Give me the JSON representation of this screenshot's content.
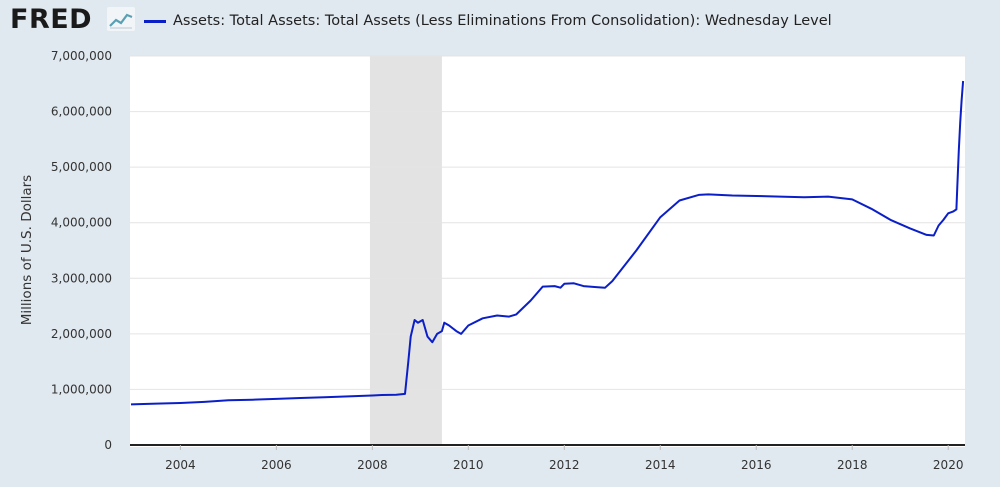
{
  "header": {
    "logo_text": "FRED",
    "logo_icon": "trend-line-icon",
    "series_color": "#0b1fc8"
  },
  "chart_data": {
    "type": "line",
    "title": "",
    "legend": {
      "placement": "top-left",
      "entries": [
        "Assets: Total Assets: Total Assets (Less Eliminations From Consolidation): Wednesday Level"
      ]
    },
    "xlabel": "",
    "ylabel": "Millions of U.S. Dollars",
    "xlim": [
      2002.95,
      2020.35
    ],
    "ylim": [
      0,
      7000000
    ],
    "x_ticks": [
      2004,
      2006,
      2008,
      2010,
      2012,
      2014,
      2016,
      2018,
      2020
    ],
    "x_tick_labels": [
      "2004",
      "2006",
      "2008",
      "2010",
      "2012",
      "2014",
      "2016",
      "2018",
      "2020"
    ],
    "y_ticks": [
      0,
      1000000,
      2000000,
      3000000,
      4000000,
      5000000,
      6000000,
      7000000
    ],
    "y_tick_labels": [
      "0",
      "1,000,000",
      "2,000,000",
      "3,000,000",
      "4,000,000",
      "5,000,000",
      "6,000,000",
      "7,000,000"
    ],
    "grid": "horizontal",
    "recession_shading": [
      [
        2007.95,
        2009.45
      ]
    ],
    "series": [
      {
        "name": "Assets: Total Assets: Total Assets (Less Eliminations From Consolidation): Wednesday Level",
        "color": "#0b1fc8",
        "points": [
          [
            2002.97,
            730000
          ],
          [
            2003.5,
            745000
          ],
          [
            2004.0,
            755000
          ],
          [
            2004.5,
            775000
          ],
          [
            2005.0,
            805000
          ],
          [
            2005.5,
            815000
          ],
          [
            2006.0,
            830000
          ],
          [
            2006.5,
            845000
          ],
          [
            2007.0,
            860000
          ],
          [
            2007.5,
            875000
          ],
          [
            2008.0,
            890000
          ],
          [
            2008.2,
            900000
          ],
          [
            2008.5,
            905000
          ],
          [
            2008.68,
            920000
          ],
          [
            2008.75,
            1500000
          ],
          [
            2008.8,
            1950000
          ],
          [
            2008.88,
            2250000
          ],
          [
            2008.95,
            2200000
          ],
          [
            2009.05,
            2250000
          ],
          [
            2009.15,
            1950000
          ],
          [
            2009.25,
            1850000
          ],
          [
            2009.35,
            2000000
          ],
          [
            2009.45,
            2050000
          ],
          [
            2009.5,
            2200000
          ],
          [
            2009.6,
            2150000
          ],
          [
            2009.75,
            2050000
          ],
          [
            2009.85,
            2000000
          ],
          [
            2010.0,
            2150000
          ],
          [
            2010.3,
            2280000
          ],
          [
            2010.6,
            2330000
          ],
          [
            2010.85,
            2310000
          ],
          [
            2011.0,
            2350000
          ],
          [
            2011.3,
            2600000
          ],
          [
            2011.55,
            2850000
          ],
          [
            2011.8,
            2860000
          ],
          [
            2011.92,
            2830000
          ],
          [
            2012.0,
            2900000
          ],
          [
            2012.2,
            2910000
          ],
          [
            2012.4,
            2860000
          ],
          [
            2012.7,
            2840000
          ],
          [
            2012.85,
            2830000
          ],
          [
            2013.0,
            2950000
          ],
          [
            2013.5,
            3500000
          ],
          [
            2014.0,
            4100000
          ],
          [
            2014.4,
            4400000
          ],
          [
            2014.8,
            4500000
          ],
          [
            2015.0,
            4510000
          ],
          [
            2015.5,
            4490000
          ],
          [
            2016.0,
            4480000
          ],
          [
            2016.5,
            4470000
          ],
          [
            2017.0,
            4460000
          ],
          [
            2017.5,
            4470000
          ],
          [
            2018.0,
            4420000
          ],
          [
            2018.4,
            4250000
          ],
          [
            2018.8,
            4050000
          ],
          [
            2019.2,
            3900000
          ],
          [
            2019.55,
            3780000
          ],
          [
            2019.7,
            3770000
          ],
          [
            2019.8,
            3950000
          ],
          [
            2019.9,
            4050000
          ],
          [
            2020.0,
            4170000
          ],
          [
            2020.1,
            4200000
          ],
          [
            2020.17,
            4240000
          ],
          [
            2020.19,
            4650000
          ],
          [
            2020.22,
            5300000
          ],
          [
            2020.25,
            5800000
          ],
          [
            2020.28,
            6200000
          ],
          [
            2020.31,
            6550000
          ]
        ]
      }
    ]
  }
}
